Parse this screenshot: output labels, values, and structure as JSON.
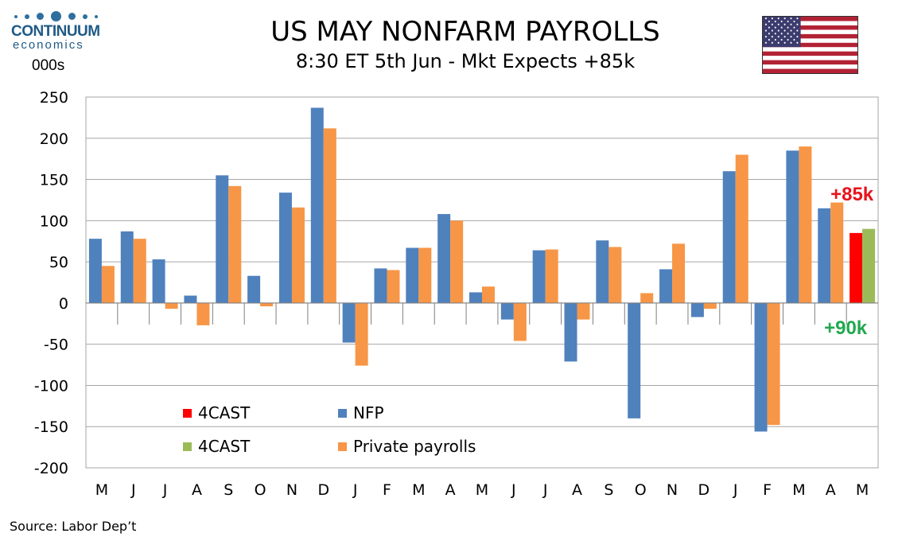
{
  "header": {
    "logo_name": "CONTINUUM",
    "logo_sub": "economics",
    "title": "US MAY NONFARM PAYROLLS",
    "subtitle": "8:30 ET 5th Jun - Mkt Expects +85k",
    "unit": "000s"
  },
  "footer": {
    "source": "Source: Labor Dep’t"
  },
  "colors": {
    "nfp": "#4f81bd",
    "private": "#f79646",
    "forecast_nfp": "#ff0000",
    "forecast_private": "#9bbb59",
    "callout_red": "#e8131c",
    "callout_green": "#21a84f",
    "grid": "#a6a6a6"
  },
  "flag": {
    "icon": "us-flag-icon"
  },
  "callouts": {
    "nfp_forecast": "+85k",
    "private_forecast": "+90k"
  },
  "legend": [
    {
      "label": "4CAST",
      "color": "#ff0000"
    },
    {
      "label": "NFP",
      "color": "#4f81bd"
    },
    {
      "label": "4CAST",
      "color": "#9bbb59"
    },
    {
      "label": "Private payrolls",
      "color": "#f79646"
    }
  ],
  "chart_data": {
    "type": "bar",
    "categories": [
      "M",
      "J",
      "J",
      "A",
      "S",
      "O",
      "N",
      "D",
      "J",
      "F",
      "M",
      "A",
      "M",
      "J",
      "J",
      "A",
      "S",
      "O",
      "N",
      "D",
      "J",
      "F",
      "M",
      "A",
      "M"
    ],
    "series": [
      {
        "name": "NFP",
        "values": [
          78,
          87,
          53,
          9,
          155,
          33,
          134,
          237,
          -48,
          42,
          67,
          108,
          13,
          -20,
          64,
          -71,
          76,
          -140,
          41,
          -17,
          160,
          -156,
          185,
          115,
          null
        ]
      },
      {
        "name": "Private payrolls",
        "values": [
          45,
          78,
          -7,
          -27,
          142,
          -4,
          116,
          212,
          -76,
          40,
          67,
          100,
          20,
          -46,
          65,
          -20,
          68,
          12,
          72,
          -7,
          180,
          -148,
          190,
          122,
          null
        ]
      },
      {
        "name": "4CAST",
        "values": [
          null,
          null,
          null,
          null,
          null,
          null,
          null,
          null,
          null,
          null,
          null,
          null,
          null,
          null,
          null,
          null,
          null,
          null,
          null,
          null,
          null,
          null,
          null,
          null,
          85
        ]
      },
      {
        "name": "4CAST",
        "values": [
          null,
          null,
          null,
          null,
          null,
          null,
          null,
          null,
          null,
          null,
          null,
          null,
          null,
          null,
          null,
          null,
          null,
          null,
          null,
          null,
          null,
          null,
          null,
          null,
          90
        ]
      }
    ],
    "ylim": [
      -200,
      250
    ],
    "yticks": [
      250,
      200,
      150,
      100,
      50,
      0,
      -50,
      -100,
      -150,
      -200
    ],
    "grid": true,
    "legend_position": "bottom-left"
  }
}
